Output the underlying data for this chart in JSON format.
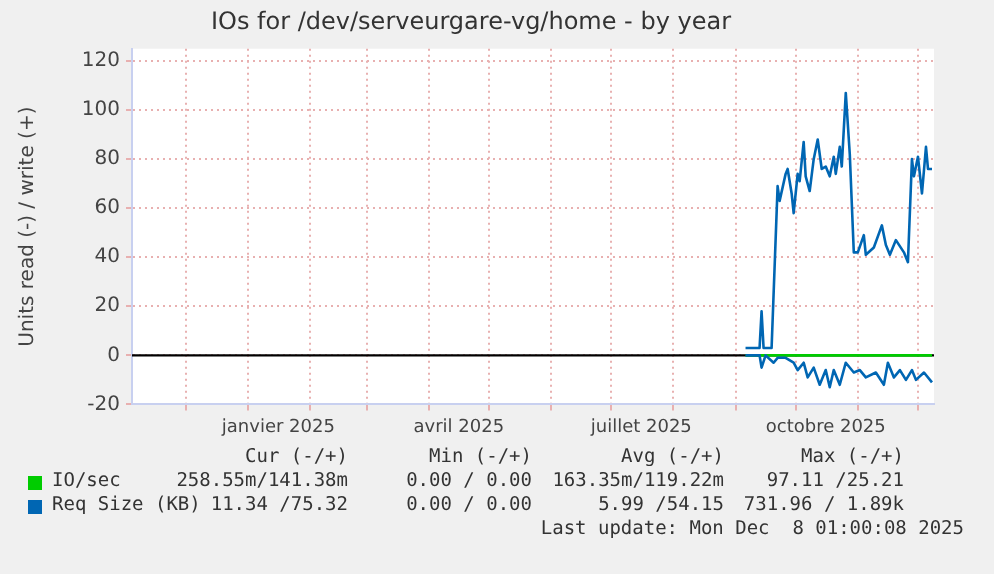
{
  "chart_data": {
    "type": "line",
    "title": "IOs for /dev/serveurgare-vg/home - by year",
    "ylabel": "Units read (-) / write (+)",
    "xlim": [
      "2024-11-04",
      "2025-12-09"
    ],
    "xticks": [
      {
        "value": "2024-12-01",
        "label": null
      },
      {
        "value": "2025-01-01",
        "label": null
      },
      {
        "value": "2025-01-16",
        "label": "janvier 2025"
      },
      {
        "value": "2025-02-01",
        "label": null
      },
      {
        "value": "2025-03-01",
        "label": null
      },
      {
        "value": "2025-04-01",
        "label": null
      },
      {
        "value": "2025-04-16",
        "label": "avril 2025"
      },
      {
        "value": "2025-05-01",
        "label": null
      },
      {
        "value": "2025-06-01",
        "label": null
      },
      {
        "value": "2025-07-01",
        "label": null
      },
      {
        "value": "2025-07-16",
        "label": "juillet 2025"
      },
      {
        "value": "2025-08-01",
        "label": null
      },
      {
        "value": "2025-09-01",
        "label": null
      },
      {
        "value": "2025-10-01",
        "label": null
      },
      {
        "value": "2025-10-16",
        "label": "octobre 2025"
      },
      {
        "value": "2025-11-01",
        "label": null
      },
      {
        "value": "2025-12-01",
        "label": null
      }
    ],
    "ylim": [
      -20,
      125
    ],
    "yticks": [
      -20,
      0,
      20,
      40,
      60,
      80,
      100,
      120
    ],
    "grid": true,
    "legend": "bottom",
    "ref_lines": [
      {
        "axis": "y",
        "value": 0,
        "color": "#000000"
      }
    ],
    "series": [
      {
        "name": "Req Size (KB)",
        "color": "#0066b3",
        "x": [
          "2025-09-06",
          "2025-09-13",
          "2025-09-14",
          "2025-09-15",
          "2025-09-19",
          "2025-09-22",
          "2025-09-23",
          "2025-09-26",
          "2025-09-27",
          "2025-09-29",
          "2025-09-30",
          "2025-10-02",
          "2025-10-03",
          "2025-10-05",
          "2025-10-06",
          "2025-10-08",
          "2025-10-10",
          "2025-10-12",
          "2025-10-14",
          "2025-10-16",
          "2025-10-18",
          "2025-10-20",
          "2025-10-21",
          "2025-10-23",
          "2025-10-24",
          "2025-10-26",
          "2025-10-28",
          "2025-10-30",
          "2025-11-01",
          "2025-11-04",
          "2025-11-05",
          "2025-11-09",
          "2025-11-13",
          "2025-11-15",
          "2025-11-17",
          "2025-11-20",
          "2025-11-24",
          "2025-11-26",
          "2025-11-28",
          "2025-11-29",
          "2025-12-01",
          "2025-12-03",
          "2025-12-05",
          "2025-12-06",
          "2025-12-08"
        ],
        "values": [
          3,
          3,
          18,
          3,
          3,
          69,
          63,
          74,
          76,
          66,
          58,
          74,
          71,
          87,
          73,
          67,
          80,
          88,
          76,
          77,
          73,
          81,
          74,
          85,
          77,
          107,
          82,
          42,
          42,
          49,
          41,
          44,
          53,
          45,
          41,
          47,
          42,
          38,
          80,
          73,
          81,
          66,
          85,
          76,
          76
        ]
      },
      {
        "color": "#0066b3",
        "x": [
          "2025-09-06",
          "2025-09-13",
          "2025-09-14",
          "2025-09-16",
          "2025-09-20",
          "2025-09-22",
          "2025-09-26",
          "2025-09-30",
          "2025-10-02",
          "2025-10-05",
          "2025-10-07",
          "2025-10-10",
          "2025-10-13",
          "2025-10-16",
          "2025-10-18",
          "2025-10-20",
          "2025-10-23",
          "2025-10-26",
          "2025-10-30",
          "2025-11-02",
          "2025-11-05",
          "2025-11-10",
          "2025-11-14",
          "2025-11-16",
          "2025-11-19",
          "2025-11-22",
          "2025-11-25",
          "2025-11-28",
          "2025-11-30",
          "2025-12-04",
          "2025-12-08"
        ],
        "values": [
          0,
          0,
          -5,
          0,
          -3,
          -1,
          -1,
          -3,
          -6,
          -3,
          -9,
          -5,
          -12,
          -6,
          -13,
          -6,
          -12,
          -3,
          -7,
          -6,
          -9,
          -7,
          -12,
          -3,
          -9,
          -6,
          -10,
          -6,
          -10,
          -7,
          -11
        ]
      },
      {
        "name": "IO/sec",
        "color": "#00cc00",
        "x": [
          "2025-09-06",
          "2025-12-08"
        ],
        "values": [
          0,
          0
        ]
      }
    ],
    "annotations": [
      "Cur (-/+)",
      "Min (-/+)",
      "Avg (-/+)",
      "Max (-/+)",
      "258.55m/141.38m",
      "0.00 / 0.00",
      "163.35m/119.22m",
      "97.11 /25.21",
      "11.34 /75.32",
      "0.00 / 0.00",
      "5.99 /54.15",
      "731.96 / 1.89k",
      "Last update: Mon Dec  8 01:00:08 2025"
    ]
  }
}
